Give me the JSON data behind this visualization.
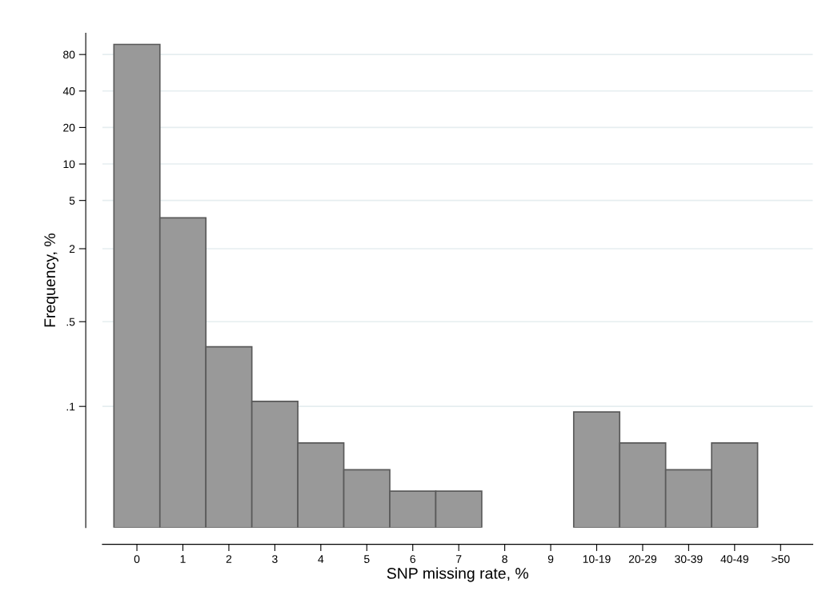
{
  "chart_data": {
    "type": "bar",
    "xlabel": "SNP missing rate, %",
    "ylabel": "Frequency, %",
    "categories": [
      "0",
      "1",
      "2",
      "3",
      "4",
      "5",
      "6",
      "7",
      "8",
      "9",
      "10-19",
      "20-29",
      "30-39",
      "40-49",
      ">50"
    ],
    "values": [
      97,
      3.6,
      0.31,
      0.11,
      0.05,
      0.03,
      0.02,
      0.02,
      null,
      null,
      0.09,
      0.05,
      0.03,
      0.05,
      null
    ],
    "color": "#999999",
    "log": "y",
    "ylim": [
      0.01,
      120
    ],
    "yticks": [
      80,
      40,
      20,
      10,
      5,
      2,
      {
        "value": 0.5,
        "label": ".5"
      },
      {
        "value": 0.1,
        "label": ".1"
      }
    ],
    "grid": "y"
  }
}
